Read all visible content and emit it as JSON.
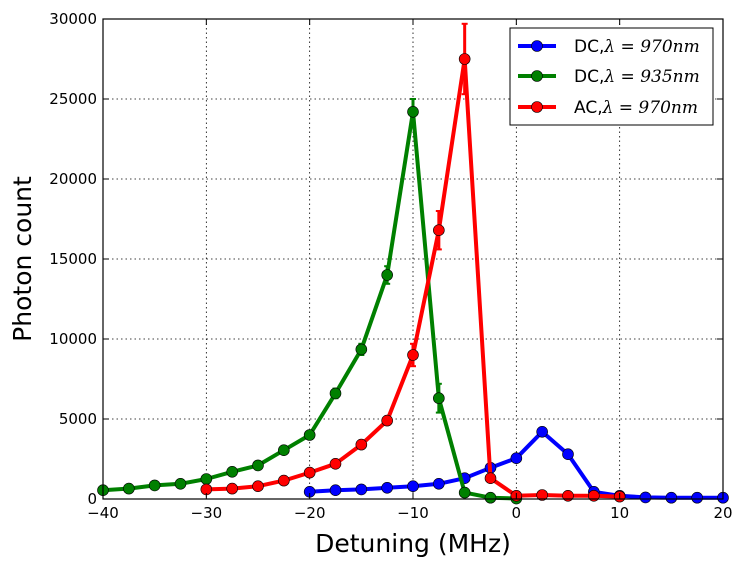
{
  "chart_data": {
    "type": "line",
    "xlabel": "Detuning (MHz)",
    "ylabel": "Photon count",
    "xlim": [
      -40,
      20
    ],
    "ylim": [
      0,
      30000
    ],
    "x_ticks": [
      -40,
      -30,
      -20,
      -10,
      0,
      10,
      20
    ],
    "y_ticks": [
      0,
      5000,
      10000,
      15000,
      20000,
      25000,
      30000
    ],
    "grid": true,
    "legend_position": "top-right",
    "series": [
      {
        "name": "DC,λ = 970nm",
        "legend_prefix": "DC,",
        "legend_math": "λ = 970nm",
        "color": "#0000ff",
        "x": [
          -20,
          -17.5,
          -15,
          -12.5,
          -10,
          -7.5,
          -5,
          -2.5,
          0,
          2.5,
          5,
          7.5,
          10,
          12.5,
          15,
          17.5,
          20
        ],
        "y": [
          450,
          550,
          600,
          700,
          800,
          950,
          1300,
          1950,
          2550,
          4200,
          2800,
          450,
          200,
          100,
          80,
          80,
          80
        ],
        "err": [
          60,
          60,
          60,
          70,
          70,
          80,
          100,
          120,
          150,
          200,
          150,
          60,
          40,
          30,
          30,
          30,
          30
        ]
      },
      {
        "name": "DC,λ = 935nm",
        "legend_prefix": "DC,",
        "legend_math": "λ = 935nm",
        "color": "#008000",
        "x": [
          -40,
          -37.5,
          -35,
          -32.5,
          -30,
          -27.5,
          -25,
          -22.5,
          -20,
          -17.5,
          -15,
          -12.5,
          -10,
          -7.5,
          -5,
          -2.5,
          0
        ],
        "y": [
          550,
          650,
          850,
          950,
          1250,
          1700,
          2100,
          3050,
          4000,
          6600,
          9350,
          14000,
          24200,
          6300,
          400,
          80,
          30
        ],
        "err": [
          60,
          60,
          70,
          80,
          100,
          120,
          150,
          200,
          250,
          300,
          350,
          550,
          800,
          900,
          80,
          30,
          20
        ]
      },
      {
        "name": "AC,λ = 970nm",
        "legend_prefix": "AC,",
        "legend_math": "λ = 970nm",
        "color": "#ff0000",
        "x": [
          -30,
          -27.5,
          -25,
          -22.5,
          -20,
          -17.5,
          -15,
          -12.5,
          -10,
          -7.5,
          -5,
          -2.5,
          0,
          2.5,
          5,
          7.5,
          10
        ],
        "y": [
          600,
          650,
          800,
          1150,
          1650,
          2200,
          3400,
          4900,
          9000,
          16800,
          27500,
          1300,
          200,
          250,
          200,
          200,
          150
        ],
        "err": [
          60,
          60,
          70,
          90,
          120,
          150,
          200,
          250,
          700,
          1200,
          2200,
          150,
          40,
          40,
          40,
          40,
          40
        ]
      }
    ]
  }
}
